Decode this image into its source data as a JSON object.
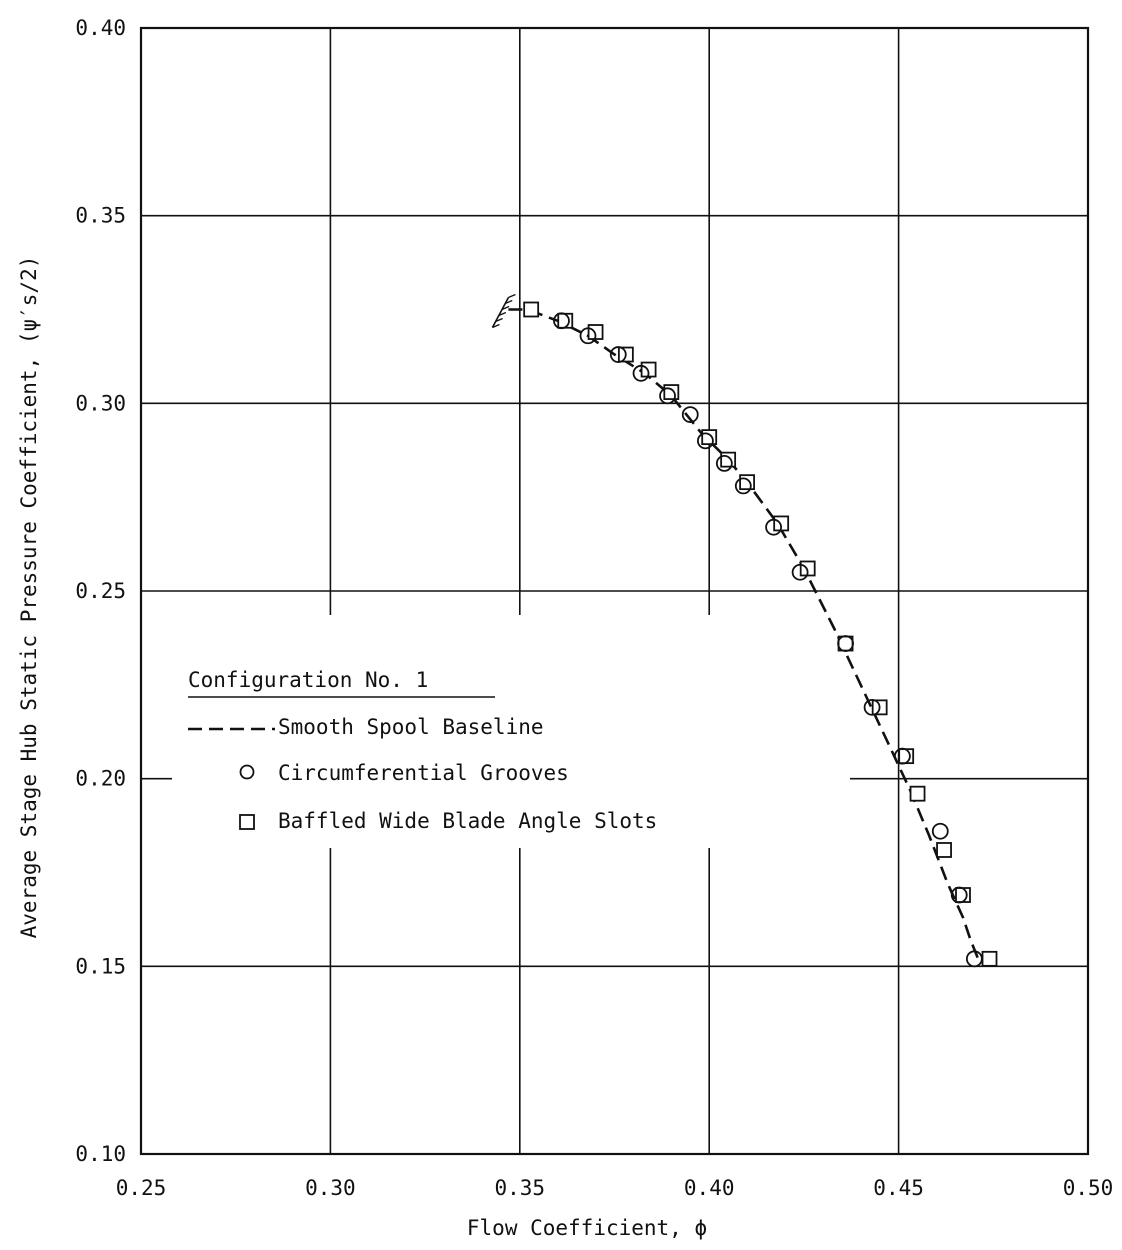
{
  "chart_data": {
    "type": "scatter",
    "xlabel": "Flow Coefficient, ϕ",
    "ylabel": "Average Stage Hub Static Pressure Coefficient, (ψ′s/2)",
    "xlim": [
      0.25,
      0.5
    ],
    "ylim": [
      0.1,
      0.4
    ],
    "xticks": [
      "0.25",
      "0.30",
      "0.35",
      "0.40",
      "0.45",
      "0.50"
    ],
    "yticks": [
      "0.10",
      "0.15",
      "0.20",
      "0.25",
      "0.30",
      "0.35",
      "0.40"
    ],
    "grid": true,
    "legend": {
      "title": "Configuration No. 1",
      "placement": "center-left",
      "entries": [
        "Smooth Spool Baseline",
        "Circumferential Grooves",
        "Baffled Wide Blade Angle Slots"
      ]
    },
    "series": [
      {
        "name": "Smooth Spool Baseline",
        "style": "dashed-line",
        "x": [
          0.347,
          0.352,
          0.36,
          0.368,
          0.375,
          0.383,
          0.39,
          0.398,
          0.405,
          0.41,
          0.418,
          0.425,
          0.433,
          0.44,
          0.447,
          0.453,
          0.458,
          0.463,
          0.467,
          0.469,
          0.471
        ],
        "y": [
          0.325,
          0.325,
          0.322,
          0.318,
          0.313,
          0.308,
          0.302,
          0.292,
          0.285,
          0.279,
          0.268,
          0.256,
          0.24,
          0.225,
          0.21,
          0.197,
          0.185,
          0.172,
          0.163,
          0.157,
          0.152
        ]
      },
      {
        "name": "Circumferential Grooves",
        "marker": "circle",
        "x": [
          0.361,
          0.368,
          0.376,
          0.382,
          0.389,
          0.395,
          0.399,
          0.404,
          0.409,
          0.417,
          0.424,
          0.436,
          0.443,
          0.451,
          0.461,
          0.466,
          0.47
        ],
        "y": [
          0.322,
          0.318,
          0.313,
          0.308,
          0.302,
          0.297,
          0.29,
          0.284,
          0.278,
          0.267,
          0.255,
          0.236,
          0.219,
          0.206,
          0.186,
          0.169,
          0.152
        ]
      },
      {
        "name": "Baffled Wide Blade Angle Slots",
        "marker": "square",
        "x": [
          0.353,
          0.362,
          0.37,
          0.378,
          0.384,
          0.39,
          0.4,
          0.405,
          0.41,
          0.419,
          0.426,
          0.436,
          0.445,
          0.452,
          0.455,
          0.462,
          0.467,
          0.474
        ],
        "y": [
          0.325,
          0.322,
          0.319,
          0.313,
          0.309,
          0.303,
          0.291,
          0.285,
          0.279,
          0.268,
          0.256,
          0.236,
          0.219,
          0.206,
          0.196,
          0.181,
          0.169,
          0.152
        ]
      }
    ],
    "stall_marker": {
      "x": 0.347,
      "y": 0.325
    }
  }
}
